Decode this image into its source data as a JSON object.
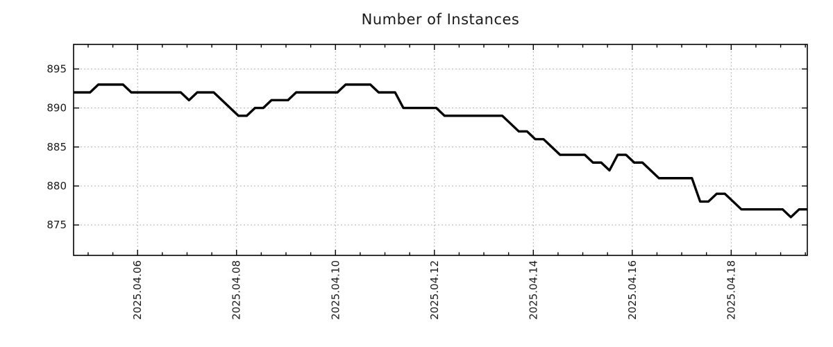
{
  "title": "Number of Instances",
  "colors": {
    "line": "#000000",
    "grid": "#b0b0b0",
    "border": "#000000",
    "text": "#1a1a1a",
    "background": "#ffffff"
  },
  "chart_data": {
    "type": "line",
    "title": "Number of Instances",
    "legend": "none",
    "grid": "dotted lines at major ticks",
    "x_axis": {
      "tick_labels": [
        "2025.04.06",
        "2025.04.08",
        "2025.04.10",
        "2025.04.12",
        "2025.04.14",
        "2025.04.16",
        "2025.04.18"
      ],
      "tick_positions_day": [
        6,
        8,
        10,
        12,
        14,
        16,
        18
      ],
      "minor_tick_step_day": 0.5,
      "xlim_day": [
        4.706,
        19.539
      ]
    },
    "y_axis": {
      "tick_labels": [
        "875",
        "880",
        "885",
        "890",
        "895"
      ],
      "tick_positions": [
        875,
        880,
        885,
        890,
        895
      ],
      "ylim": [
        871.1,
        898.15
      ]
    },
    "series": [
      {
        "name": "number-of-instances",
        "color": "#000000",
        "x_start_day": 4.706,
        "x_step_day": 0.166667,
        "values": [
          892,
          892,
          892,
          893,
          893,
          893,
          893,
          892,
          892,
          892,
          892,
          892,
          892,
          892,
          891,
          892,
          892,
          892,
          891,
          890,
          889,
          889,
          890,
          890,
          891,
          891,
          891,
          892,
          892,
          892,
          892,
          892,
          892,
          893,
          893,
          893,
          893,
          892,
          892,
          892,
          890,
          890,
          890,
          890,
          890,
          889,
          889,
          889,
          889,
          889,
          889,
          889,
          889,
          888,
          887,
          887,
          886,
          886,
          885,
          884,
          884,
          884,
          884,
          883,
          883,
          882,
          884,
          884,
          883,
          883,
          882,
          881,
          881,
          881,
          881,
          881,
          878,
          878,
          879,
          879,
          878,
          877,
          877,
          877,
          877,
          877,
          877,
          876,
          877,
          877
        ]
      }
    ]
  }
}
